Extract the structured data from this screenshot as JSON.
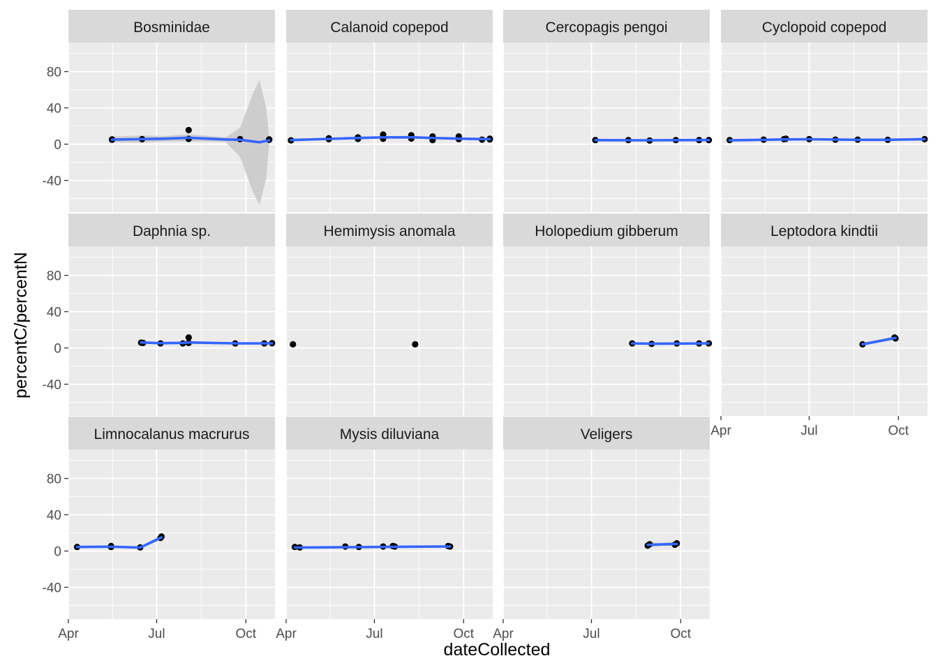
{
  "chart_data": {
    "type": "scatter",
    "layout": "facet_wrap",
    "xlabel": "dateCollected",
    "ylabel": "percentC/percentN",
    "x_ticks": [
      "Apr",
      "Jul",
      "Oct"
    ],
    "x_tick_dates": [
      "2019-04-01",
      "2019-07-01",
      "2019-10-01"
    ],
    "xlim": [
      "2019-04-01",
      "2019-10-31"
    ],
    "y_ticks": [
      -40,
      0,
      40,
      80
    ],
    "ylim": [
      -75,
      112
    ],
    "grid": true,
    "smoother": "loess with confidence band",
    "colors": {
      "panel_bg": "#EBEBEB",
      "strip_bg": "#D9D9D9",
      "grid": "#FFFFFF",
      "points": "#000000",
      "line": "#3366FF",
      "band": "#C8C8C8"
    },
    "panels": [
      {
        "name": "Bosminidae",
        "points": [
          [
            "2019-05-16",
            5.2
          ],
          [
            "2019-05-16",
            4.8
          ],
          [
            "2019-06-16",
            5.5
          ],
          [
            "2019-08-03",
            15.5
          ],
          [
            "2019-08-03",
            5.8
          ],
          [
            "2019-09-25",
            5.5
          ],
          [
            "2019-10-25",
            4.8
          ],
          [
            "2019-10-25",
            5.2
          ]
        ],
        "fit": [
          [
            "2019-05-16",
            5.0
          ],
          [
            "2019-06-16",
            5.6
          ],
          [
            "2019-07-10",
            6.0
          ],
          [
            "2019-08-03",
            7.0
          ],
          [
            "2019-09-10",
            5.2
          ],
          [
            "2019-09-25",
            4.8
          ],
          [
            "2019-10-15",
            2.0
          ],
          [
            "2019-10-25",
            4.2
          ]
        ],
        "band_upper": [
          [
            "2019-05-16",
            8.5
          ],
          [
            "2019-06-16",
            9.5
          ],
          [
            "2019-07-10",
            9.0
          ],
          [
            "2019-08-03",
            11.0
          ],
          [
            "2019-09-10",
            7.5
          ],
          [
            "2019-09-25",
            18.0
          ],
          [
            "2019-10-08",
            55.0
          ],
          [
            "2019-10-15",
            71.0
          ],
          [
            "2019-10-22",
            40.0
          ],
          [
            "2019-10-25",
            7.0
          ]
        ],
        "band_lower": [
          [
            "2019-05-16",
            2.0
          ],
          [
            "2019-06-16",
            1.5
          ],
          [
            "2019-07-10",
            3.0
          ],
          [
            "2019-08-03",
            3.0
          ],
          [
            "2019-09-10",
            2.5
          ],
          [
            "2019-09-25",
            -14.0
          ],
          [
            "2019-10-08",
            -52.0
          ],
          [
            "2019-10-15",
            -67.0
          ],
          [
            "2019-10-22",
            -38.0
          ],
          [
            "2019-10-25",
            1.5
          ]
        ]
      },
      {
        "name": "Calanoid copepod",
        "points": [
          [
            "2019-04-06",
            4.2
          ],
          [
            "2019-05-15",
            6.5
          ],
          [
            "2019-05-15",
            5.5
          ],
          [
            "2019-06-14",
            7.5
          ],
          [
            "2019-06-14",
            5.8
          ],
          [
            "2019-07-10",
            10.5
          ],
          [
            "2019-07-10",
            6.0
          ],
          [
            "2019-08-08",
            9.8
          ],
          [
            "2019-08-08",
            6.2
          ],
          [
            "2019-08-30",
            8.5
          ],
          [
            "2019-08-30",
            4.5
          ],
          [
            "2019-09-26",
            8.5
          ],
          [
            "2019-09-26",
            5.5
          ],
          [
            "2019-10-20",
            5.0
          ],
          [
            "2019-10-28",
            6.0
          ],
          [
            "2019-10-28",
            5.2
          ]
        ],
        "fit": [
          [
            "2019-04-06",
            4.5
          ],
          [
            "2019-05-15",
            5.8
          ],
          [
            "2019-06-14",
            6.8
          ],
          [
            "2019-07-10",
            7.5
          ],
          [
            "2019-08-08",
            7.6
          ],
          [
            "2019-08-30",
            6.8
          ],
          [
            "2019-09-26",
            6.0
          ],
          [
            "2019-10-28",
            5.5
          ]
        ],
        "band_upper": [
          [
            "2019-04-06",
            6.0
          ],
          [
            "2019-05-15",
            7.0
          ],
          [
            "2019-06-14",
            8.0
          ],
          [
            "2019-07-10",
            8.7
          ],
          [
            "2019-08-08",
            8.8
          ],
          [
            "2019-08-30",
            8.0
          ],
          [
            "2019-09-26",
            7.3
          ],
          [
            "2019-10-28",
            7.2
          ]
        ],
        "band_lower": [
          [
            "2019-04-06",
            3.0
          ],
          [
            "2019-05-15",
            4.6
          ],
          [
            "2019-06-14",
            5.6
          ],
          [
            "2019-07-10",
            6.3
          ],
          [
            "2019-08-08",
            6.4
          ],
          [
            "2019-08-30",
            5.6
          ],
          [
            "2019-09-26",
            4.7
          ],
          [
            "2019-10-28",
            3.8
          ]
        ]
      },
      {
        "name": "Cercopagis pengoi",
        "points": [
          [
            "2019-07-05",
            4.5
          ],
          [
            "2019-08-08",
            4.5
          ],
          [
            "2019-08-30",
            4.0
          ],
          [
            "2019-09-26",
            4.5
          ],
          [
            "2019-10-20",
            4.5
          ],
          [
            "2019-10-30",
            4.5
          ]
        ],
        "fit": [
          [
            "2019-07-05",
            4.4
          ],
          [
            "2019-08-08",
            4.3
          ],
          [
            "2019-08-30",
            4.3
          ],
          [
            "2019-09-26",
            4.4
          ],
          [
            "2019-10-30",
            4.5
          ]
        ],
        "band_upper": [
          [
            "2019-07-05",
            5.2
          ],
          [
            "2019-08-08",
            4.9
          ],
          [
            "2019-09-26",
            4.9
          ],
          [
            "2019-10-30",
            5.3
          ]
        ],
        "band_lower": [
          [
            "2019-07-05",
            3.6
          ],
          [
            "2019-08-08",
            3.7
          ],
          [
            "2019-09-26",
            3.9
          ],
          [
            "2019-10-30",
            3.7
          ]
        ]
      },
      {
        "name": "Cyclopoid copepod",
        "points": [
          [
            "2019-04-10",
            4.5
          ],
          [
            "2019-05-15",
            5.0
          ],
          [
            "2019-06-05",
            5.5
          ],
          [
            "2019-06-07",
            6.0
          ],
          [
            "2019-07-01",
            5.5
          ],
          [
            "2019-07-28",
            5.0
          ],
          [
            "2019-08-20",
            5.0
          ],
          [
            "2019-09-20",
            4.8
          ],
          [
            "2019-10-28",
            5.5
          ]
        ],
        "fit": [
          [
            "2019-04-10",
            4.2
          ],
          [
            "2019-05-15",
            4.8
          ],
          [
            "2019-06-05",
            5.2
          ],
          [
            "2019-07-01",
            5.4
          ],
          [
            "2019-07-28",
            5.1
          ],
          [
            "2019-08-20",
            4.8
          ],
          [
            "2019-09-20",
            4.8
          ],
          [
            "2019-10-28",
            5.5
          ]
        ],
        "band_upper": [
          [
            "2019-04-10",
            5.5
          ],
          [
            "2019-06-05",
            6.2
          ],
          [
            "2019-07-28",
            6.1
          ],
          [
            "2019-09-20",
            5.8
          ],
          [
            "2019-10-28",
            6.8
          ]
        ],
        "band_lower": [
          [
            "2019-04-10",
            3.0
          ],
          [
            "2019-06-05",
            4.2
          ],
          [
            "2019-07-28",
            4.1
          ],
          [
            "2019-09-20",
            3.8
          ],
          [
            "2019-10-28",
            4.2
          ]
        ]
      },
      {
        "name": "Daphnia sp.",
        "points": [
          [
            "2019-06-15",
            5.8
          ],
          [
            "2019-06-17",
            5.5
          ],
          [
            "2019-07-05",
            5.0
          ],
          [
            "2019-07-28",
            5.0
          ],
          [
            "2019-08-03",
            5.5
          ],
          [
            "2019-08-03",
            11.5
          ],
          [
            "2019-09-20",
            5.0
          ],
          [
            "2019-10-20",
            5.0
          ],
          [
            "2019-10-28",
            5.2
          ]
        ],
        "fit": [
          [
            "2019-06-15",
            6.0
          ],
          [
            "2019-07-05",
            5.3
          ],
          [
            "2019-07-28",
            5.5
          ],
          [
            "2019-08-03",
            6.0
          ],
          [
            "2019-09-20",
            5.0
          ],
          [
            "2019-10-28",
            5.0
          ]
        ],
        "band_upper": [
          [
            "2019-06-15",
            7.5
          ],
          [
            "2019-07-05",
            6.5
          ],
          [
            "2019-08-03",
            7.5
          ],
          [
            "2019-09-20",
            6.2
          ],
          [
            "2019-10-28",
            6.4
          ]
        ],
        "band_lower": [
          [
            "2019-06-15",
            4.5
          ],
          [
            "2019-07-05",
            4.1
          ],
          [
            "2019-08-03",
            4.5
          ],
          [
            "2019-09-20",
            3.8
          ],
          [
            "2019-10-28",
            3.6
          ]
        ]
      },
      {
        "name": "Hemimysis anomala",
        "points": [
          [
            "2019-04-08",
            4.0
          ],
          [
            "2019-08-12",
            4.0
          ]
        ],
        "fit": [],
        "band_upper": [],
        "band_lower": []
      },
      {
        "name": "Holopedium gibberum",
        "points": [
          [
            "2019-08-12",
            5.0
          ],
          [
            "2019-09-01",
            4.5
          ],
          [
            "2019-09-27",
            5.0
          ],
          [
            "2019-10-20",
            5.0
          ],
          [
            "2019-10-30",
            5.0
          ]
        ],
        "fit": [
          [
            "2019-08-12",
            5.0
          ],
          [
            "2019-09-01",
            4.7
          ],
          [
            "2019-09-27",
            4.8
          ],
          [
            "2019-10-30",
            5.0
          ]
        ],
        "band_upper": [
          [
            "2019-08-12",
            5.8
          ],
          [
            "2019-09-27",
            5.4
          ],
          [
            "2019-10-30",
            5.8
          ]
        ],
        "band_lower": [
          [
            "2019-08-12",
            4.2
          ],
          [
            "2019-09-27",
            4.2
          ],
          [
            "2019-10-30",
            4.2
          ]
        ]
      },
      {
        "name": "Leptodora kindtii",
        "points": [
          [
            "2019-08-25",
            4.0
          ],
          [
            "2019-09-27",
            11.5
          ],
          [
            "2019-09-28",
            10.5
          ]
        ],
        "fit": [
          [
            "2019-08-25",
            4.0
          ],
          [
            "2019-09-28",
            11.0
          ]
        ],
        "band_upper": [
          [
            "2019-08-25",
            5.5
          ],
          [
            "2019-09-28",
            13.0
          ]
        ],
        "band_lower": [
          [
            "2019-08-25",
            2.5
          ],
          [
            "2019-09-28",
            9.0
          ]
        ]
      },
      {
        "name": "Limnocalanus macrurus",
        "points": [
          [
            "2019-04-10",
            4.5
          ],
          [
            "2019-05-15",
            5.5
          ],
          [
            "2019-05-15",
            4.5
          ],
          [
            "2019-06-14",
            4.0
          ],
          [
            "2019-07-05",
            14.5
          ],
          [
            "2019-07-06",
            16.0
          ]
        ],
        "fit": [
          [
            "2019-04-10",
            4.5
          ],
          [
            "2019-05-15",
            4.8
          ],
          [
            "2019-06-14",
            3.8
          ],
          [
            "2019-07-06",
            15.0
          ]
        ],
        "band_upper": [
          [
            "2019-04-10",
            5.5
          ],
          [
            "2019-05-15",
            6.0
          ],
          [
            "2019-06-14",
            5.0
          ],
          [
            "2019-07-06",
            17.5
          ]
        ],
        "band_lower": [
          [
            "2019-04-10",
            3.5
          ],
          [
            "2019-05-15",
            3.6
          ],
          [
            "2019-06-14",
            2.6
          ],
          [
            "2019-07-06",
            12.5
          ]
        ]
      },
      {
        "name": "Mysis diluviana",
        "points": [
          [
            "2019-04-10",
            4.5
          ],
          [
            "2019-04-15",
            4.0
          ],
          [
            "2019-06-01",
            5.0
          ],
          [
            "2019-06-15",
            4.5
          ],
          [
            "2019-07-10",
            5.0
          ],
          [
            "2019-07-20",
            5.5
          ],
          [
            "2019-07-22",
            5.0
          ],
          [
            "2019-09-15",
            5.5
          ],
          [
            "2019-09-17",
            5.0
          ]
        ],
        "fit": [
          [
            "2019-04-10",
            3.8
          ],
          [
            "2019-06-01",
            4.2
          ],
          [
            "2019-07-15",
            4.6
          ],
          [
            "2019-09-17",
            5.0
          ]
        ],
        "band_upper": [
          [
            "2019-04-10",
            4.8
          ],
          [
            "2019-07-15",
            5.3
          ],
          [
            "2019-09-17",
            6.0
          ]
        ],
        "band_lower": [
          [
            "2019-04-10",
            2.8
          ],
          [
            "2019-07-15",
            3.9
          ],
          [
            "2019-09-17",
            4.0
          ]
        ]
      },
      {
        "name": "Veligers",
        "points": [
          [
            "2019-08-28",
            6.0
          ],
          [
            "2019-08-30",
            7.5
          ],
          [
            "2019-09-25",
            7.0
          ],
          [
            "2019-09-27",
            8.5
          ]
        ],
        "fit": [
          [
            "2019-08-28",
            6.8
          ],
          [
            "2019-09-27",
            7.8
          ]
        ],
        "band_upper": [
          [
            "2019-08-28",
            9.5
          ],
          [
            "2019-09-12",
            9.0
          ],
          [
            "2019-09-27",
            10.5
          ]
        ],
        "band_lower": [
          [
            "2019-08-28",
            4.0
          ],
          [
            "2019-09-12",
            5.8
          ],
          [
            "2019-09-27",
            5.0
          ]
        ]
      }
    ]
  }
}
